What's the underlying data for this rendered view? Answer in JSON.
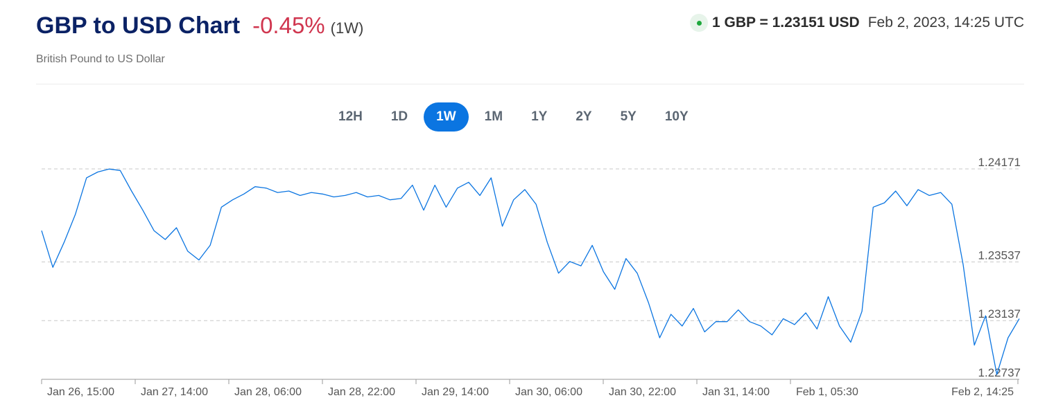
{
  "header": {
    "title": "GBP to USD Chart",
    "change": "-0.45%",
    "period": "(1W)",
    "subtitle": "British Pound to US Dollar",
    "rate": "1 GBP = 1.23151 USD",
    "timestamp": "Feb 2, 2023, 14:25 UTC"
  },
  "tabs": [
    {
      "label": "12H",
      "active": false
    },
    {
      "label": "1D",
      "active": false
    },
    {
      "label": "1W",
      "active": true
    },
    {
      "label": "1M",
      "active": false
    },
    {
      "label": "1Y",
      "active": false
    },
    {
      "label": "2Y",
      "active": false
    },
    {
      "label": "5Y",
      "active": false
    },
    {
      "label": "10Y",
      "active": false
    }
  ],
  "colors": {
    "line": "#0b75e1",
    "accent": "#0b75e1",
    "negative": "#d0364f",
    "live": "#1ea83c",
    "title": "#0b2265"
  },
  "chart_data": {
    "type": "line",
    "title": "",
    "xlabel": "",
    "ylabel": "",
    "grid": true,
    "y_ticks": [
      "1.24171",
      "1.23537",
      "1.23137",
      "1.22737"
    ],
    "ylim": [
      1.22737,
      1.24171
    ],
    "x_ticks": [
      "Jan 26, 15:00",
      "Jan 27, 14:00",
      "Jan 28, 06:00",
      "Jan 28, 22:00",
      "Jan 29, 14:00",
      "Jan 30, 06:00",
      "Jan 30, 22:00",
      "Jan 31, 14:00",
      "Feb 1, 05:30",
      "Feb 2, 14:25"
    ],
    "series": [
      {
        "values": [
          1.2375,
          1.235,
          1.2367,
          1.2386,
          1.2411,
          1.2415,
          1.2417,
          1.2416,
          1.2402,
          1.2389,
          1.2375,
          1.2369,
          1.2377,
          1.2361,
          1.2355,
          1.2365,
          1.2391,
          1.2396,
          1.24,
          1.2405,
          1.2404,
          1.2401,
          1.2402,
          1.2399,
          1.2401,
          1.24,
          1.2398,
          1.2399,
          1.2401,
          1.2398,
          1.2399,
          1.2396,
          1.2397,
          1.2406,
          1.2389,
          1.2406,
          1.2391,
          1.2404,
          1.2408,
          1.2399,
          1.2411,
          1.2378,
          1.2396,
          1.2403,
          1.2393,
          1.2367,
          1.2346,
          1.2354,
          1.2351,
          1.2365,
          1.2347,
          1.2335,
          1.2356,
          1.2346,
          1.2326,
          1.2302,
          1.2318,
          1.231,
          1.2322,
          1.2306,
          1.2313,
          1.2313,
          1.2321,
          1.2313,
          1.231,
          1.2304,
          1.2315,
          1.2311,
          1.2319,
          1.2308,
          1.233,
          1.231,
          1.2299,
          1.232,
          1.2391,
          1.2394,
          1.2402,
          1.2392,
          1.2403,
          1.2399,
          1.2401,
          1.2393,
          1.2352,
          1.2297,
          1.2317,
          1.2277,
          1.2302,
          1.2315
        ]
      }
    ]
  }
}
